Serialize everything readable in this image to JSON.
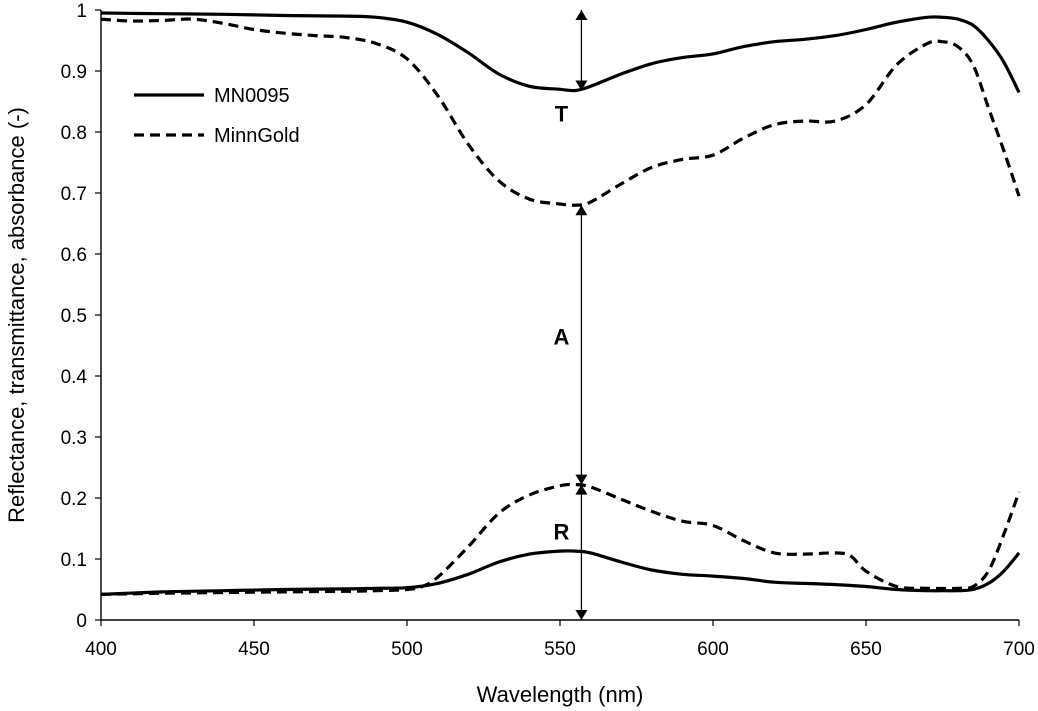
{
  "chart_data": {
    "type": "line",
    "title": "",
    "xlabel": "Wavelength (nm)",
    "ylabel": "Reflectance, transmittance, absorbance (-)",
    "xlim": [
      400,
      700
    ],
    "ylim": [
      0,
      1
    ],
    "x_ticks": [
      "400",
      "450",
      "500",
      "550",
      "600",
      "650",
      "700"
    ],
    "y_ticks": [
      "0",
      "0.1",
      "0.2",
      "0.3",
      "0.4",
      "0.5",
      "0.6",
      "0.7",
      "0.8",
      "0.9",
      "1"
    ],
    "grid": false,
    "legend_position": "top-left",
    "series": [
      {
        "name": "MN0095",
        "style": "solid",
        "color": "#000000",
        "curves": [
          {
            "x": [
              400,
              420,
              440,
              460,
              480,
              490,
              500,
              510,
              520,
              530,
              540,
              550,
              555,
              560,
              570,
              580,
              590,
              600,
              610,
              620,
              630,
              640,
              650,
              660,
              670,
              675,
              680,
              685,
              690,
              695,
              700
            ],
            "y": [
              0.995,
              0.994,
              0.993,
              0.991,
              0.99,
              0.988,
              0.98,
              0.96,
              0.93,
              0.895,
              0.875,
              0.87,
              0.868,
              0.875,
              0.895,
              0.912,
              0.922,
              0.928,
              0.94,
              0.948,
              0.952,
              0.958,
              0.968,
              0.98,
              0.988,
              0.988,
              0.985,
              0.975,
              0.95,
              0.915,
              0.865
            ]
          },
          {
            "x": [
              400,
              420,
              440,
              460,
              480,
              490,
              500,
              510,
              520,
              530,
              540,
              550,
              555,
              560,
              570,
              580,
              590,
              600,
              610,
              620,
              630,
              640,
              650,
              660,
              670,
              675,
              680,
              685,
              690,
              695,
              700
            ],
            "y": [
              0.042,
              0.046,
              0.048,
              0.05,
              0.051,
              0.052,
              0.053,
              0.06,
              0.075,
              0.095,
              0.108,
              0.113,
              0.113,
              0.11,
              0.095,
              0.082,
              0.075,
              0.072,
              0.068,
              0.062,
              0.06,
              0.058,
              0.055,
              0.05,
              0.048,
              0.048,
              0.048,
              0.05,
              0.06,
              0.08,
              0.11
            ]
          }
        ]
      },
      {
        "name": "MinnGold",
        "style": "dashed",
        "color": "#000000",
        "curves": [
          {
            "x": [
              400,
              410,
              420,
              430,
              440,
              450,
              460,
              470,
              480,
              490,
              500,
              510,
              520,
              530,
              540,
              550,
              555,
              560,
              570,
              580,
              590,
              600,
              610,
              620,
              630,
              640,
              650,
              660,
              670,
              675,
              680,
              685,
              690,
              695,
              700
            ],
            "y": [
              0.985,
              0.982,
              0.983,
              0.985,
              0.978,
              0.968,
              0.962,
              0.958,
              0.955,
              0.945,
              0.92,
              0.86,
              0.78,
              0.72,
              0.69,
              0.682,
              0.68,
              0.685,
              0.715,
              0.742,
              0.755,
              0.762,
              0.79,
              0.812,
              0.818,
              0.818,
              0.845,
              0.91,
              0.945,
              0.948,
              0.94,
              0.91,
              0.84,
              0.77,
              0.695
            ]
          },
          {
            "x": [
              400,
              420,
              440,
              460,
              480,
              490,
              500,
              505,
              510,
              520,
              530,
              540,
              550,
              555,
              560,
              570,
              580,
              590,
              600,
              610,
              620,
              630,
              640,
              645,
              650,
              660,
              670,
              680,
              685,
              690,
              695,
              700
            ],
            "y": [
              0.042,
              0.044,
              0.045,
              0.046,
              0.047,
              0.048,
              0.05,
              0.055,
              0.07,
              0.12,
              0.175,
              0.205,
              0.22,
              0.222,
              0.218,
              0.198,
              0.178,
              0.162,
              0.155,
              0.13,
              0.11,
              0.108,
              0.11,
              0.105,
              0.08,
              0.055,
              0.052,
              0.052,
              0.055,
              0.08,
              0.14,
              0.21
            ]
          }
        ]
      }
    ],
    "annotations": [
      {
        "label": "T",
        "x": 557,
        "y_from": 0.868,
        "y_to": 1.0,
        "label_y": 0.83
      },
      {
        "label": "A",
        "x": 557,
        "y_from": 0.222,
        "y_to": 0.68,
        "label_y": 0.465
      },
      {
        "label": "R",
        "x": 557,
        "y_from": 0.0,
        "y_to": 0.222,
        "label_y": 0.145
      }
    ]
  }
}
